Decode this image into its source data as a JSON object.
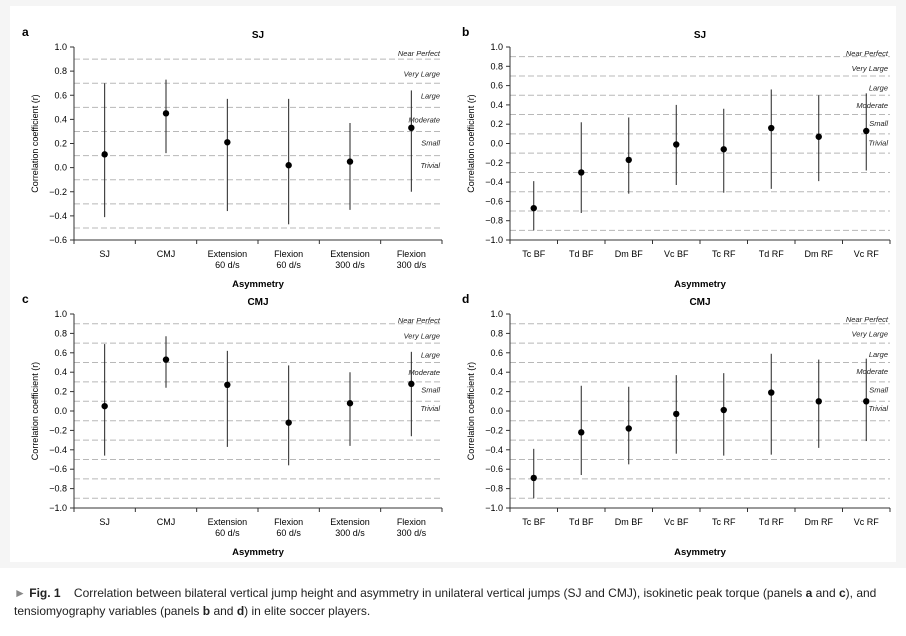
{
  "caption": {
    "marker": "►",
    "label": "Fig. 1",
    "text_before_a": "Correlation between bilateral vertical jump height and asymmetry in unilateral vertical jumps (SJ and CMJ), isokinetic peak torque (panels ",
    "a": "a",
    "and_1": " and ",
    "c": "c",
    "text_mid": "), and tensiomyography variables (panels ",
    "b": "b",
    "and_2": " and ",
    "d": "d",
    "text_end": ") in elite soccer players."
  },
  "chart_data": [
    {
      "panel": "a",
      "type": "scatter",
      "title": "SJ",
      "xlabel": "Asymmetry",
      "ylabel": "Correlation coefficient (r)",
      "ylim": [
        -0.6,
        1.0
      ],
      "yticks": [
        "1.0",
        "0.8",
        "0.6",
        "0.4",
        "0.2",
        "0.0",
        "−0.2",
        "−0.4",
        "−0.6"
      ],
      "ytick_values": [
        1.0,
        0.8,
        0.6,
        0.4,
        0.2,
        0.0,
        -0.2,
        -0.4,
        -0.6
      ],
      "categories": [
        [
          "SJ"
        ],
        [
          "CMJ"
        ],
        [
          "Extension",
          "60 d/s"
        ],
        [
          "Flexion",
          "60 d/s"
        ],
        [
          "Extension",
          "300 d/s"
        ],
        [
          "Flexion",
          "300 d/s"
        ]
      ],
      "r": [
        0.11,
        0.45,
        0.21,
        0.02,
        0.05,
        0.33
      ],
      "ci_lower": [
        -0.41,
        0.12,
        -0.36,
        -0.47,
        -0.35,
        -0.2
      ],
      "ci_upper": [
        0.7,
        0.73,
        0.57,
        0.57,
        0.37,
        0.64
      ],
      "thresholds": [
        0.9,
        0.7,
        0.5,
        0.3,
        0.1,
        -0.1,
        -0.3,
        -0.5
      ],
      "threshold_labels": [
        {
          "label": "Near Perfect",
          "y": 0.95
        },
        {
          "label": "Very Large",
          "y": 0.78
        },
        {
          "label": "Large",
          "y": 0.6
        },
        {
          "label": "Moderate",
          "y": 0.4
        },
        {
          "label": "Small",
          "y": 0.21
        },
        {
          "label": "Trivial",
          "y": 0.02
        }
      ]
    },
    {
      "panel": "b",
      "type": "scatter",
      "title": "SJ",
      "xlabel": "Asymmetry",
      "ylabel": "Correlation coefficient (r)",
      "ylim": [
        -1.0,
        1.0
      ],
      "yticks": [
        "1.0",
        "0.8",
        "0.6",
        "0.4",
        "0.2",
        "0.0",
        "−0.2",
        "−0.4",
        "−0.6",
        "−0.8",
        "−1.0"
      ],
      "ytick_values": [
        1.0,
        0.8,
        0.6,
        0.4,
        0.2,
        0.0,
        -0.2,
        -0.4,
        -0.6,
        -0.8,
        -1.0
      ],
      "categories": [
        [
          "Tc BF"
        ],
        [
          "Td BF"
        ],
        [
          "Dm BF"
        ],
        [
          "Vc BF"
        ],
        [
          "Tc RF"
        ],
        [
          "Td RF"
        ],
        [
          "Dm RF"
        ],
        [
          "Vc RF"
        ]
      ],
      "r": [
        -0.67,
        -0.3,
        -0.17,
        -0.01,
        -0.06,
        0.16,
        0.07,
        0.13
      ],
      "ci_lower": [
        -0.9,
        -0.72,
        -0.52,
        -0.43,
        -0.51,
        -0.47,
        -0.39,
        -0.28
      ],
      "ci_upper": [
        -0.39,
        0.22,
        0.27,
        0.4,
        0.36,
        0.56,
        0.5,
        0.52
      ],
      "thresholds": [
        0.9,
        0.7,
        0.5,
        0.3,
        0.1,
        -0.1,
        -0.3,
        -0.5,
        -0.7,
        -0.9
      ],
      "threshold_labels": [
        {
          "label": "Near Perfect",
          "y": 0.94
        },
        {
          "label": "Very Large",
          "y": 0.78
        },
        {
          "label": "Large",
          "y": 0.58
        },
        {
          "label": "Moderate",
          "y": 0.4
        },
        {
          "label": "Small",
          "y": 0.21
        },
        {
          "label": "Trivial",
          "y": 0.01
        }
      ]
    },
    {
      "panel": "c",
      "type": "scatter",
      "title": "CMJ",
      "xlabel": "Asymmetry",
      "ylabel": "Correlation coefficient (r)",
      "ylim": [
        -1.0,
        1.0
      ],
      "yticks": [
        "1.0",
        "0.8",
        "0.6",
        "0.4",
        "0.2",
        "0.0",
        "−0.2",
        "−0.4",
        "−0.6",
        "−0.8",
        "−1.0"
      ],
      "ytick_values": [
        1.0,
        0.8,
        0.6,
        0.4,
        0.2,
        0.0,
        -0.2,
        -0.4,
        -0.6,
        -0.8,
        -1.0
      ],
      "categories": [
        [
          "SJ"
        ],
        [
          "CMJ"
        ],
        [
          "Extension",
          "60 d/s"
        ],
        [
          "Flexion",
          "60 d/s"
        ],
        [
          "Extension",
          "300 d/s"
        ],
        [
          "Flexion",
          "300 d/s"
        ]
      ],
      "r": [
        0.05,
        0.53,
        0.27,
        -0.12,
        0.08,
        0.28
      ],
      "ci_lower": [
        -0.46,
        0.24,
        -0.37,
        -0.56,
        -0.36,
        -0.26
      ],
      "ci_upper": [
        0.69,
        0.77,
        0.62,
        0.47,
        0.4,
        0.61
      ],
      "thresholds": [
        0.9,
        0.7,
        0.5,
        0.3,
        0.1,
        -0.1,
        -0.3,
        -0.5,
        -0.7,
        -0.9
      ],
      "threshold_labels": [
        {
          "label": "Near Perfect",
          "y": 0.94
        },
        {
          "label": "Very Large",
          "y": 0.78
        },
        {
          "label": "Large",
          "y": 0.58
        },
        {
          "label": "Moderate",
          "y": 0.4
        },
        {
          "label": "Small",
          "y": 0.22
        },
        {
          "label": "Trivial",
          "y": 0.03
        }
      ]
    },
    {
      "panel": "d",
      "type": "scatter",
      "title": "CMJ",
      "xlabel": "Asymmetry",
      "ylabel": "Correlation coefficient (r)",
      "ylim": [
        -1.0,
        1.0
      ],
      "yticks": [
        "1.0",
        "0.8",
        "0.6",
        "0.4",
        "0.2",
        "0.0",
        "−0.2",
        "−0.4",
        "−0.6",
        "−0.8",
        "−1.0"
      ],
      "ytick_values": [
        1.0,
        0.8,
        0.6,
        0.4,
        0.2,
        0.0,
        -0.2,
        -0.4,
        -0.6,
        -0.8,
        -1.0
      ],
      "categories": [
        [
          "Tc BF"
        ],
        [
          "Td BF"
        ],
        [
          "Dm BF"
        ],
        [
          "Vc BF"
        ],
        [
          "Tc RF"
        ],
        [
          "Td RF"
        ],
        [
          "Dm RF"
        ],
        [
          "Vc RF"
        ]
      ],
      "r": [
        -0.69,
        -0.22,
        -0.18,
        -0.03,
        0.01,
        0.19,
        0.1,
        0.1
      ],
      "ci_lower": [
        -0.9,
        -0.66,
        -0.55,
        -0.44,
        -0.46,
        -0.45,
        -0.38,
        -0.31
      ],
      "ci_upper": [
        -0.39,
        0.26,
        0.25,
        0.37,
        0.39,
        0.59,
        0.53,
        0.54
      ],
      "thresholds": [
        0.9,
        0.7,
        0.5,
        0.3,
        0.1,
        -0.1,
        -0.3,
        -0.5,
        -0.7,
        -0.9
      ],
      "threshold_labels": [
        {
          "label": "Near Perfect",
          "y": 0.95
        },
        {
          "label": "Very Large",
          "y": 0.8
        },
        {
          "label": "Large",
          "y": 0.59
        },
        {
          "label": "Moderate",
          "y": 0.41
        },
        {
          "label": "Small",
          "y": 0.22
        },
        {
          "label": "Trivial",
          "y": 0.03
        }
      ]
    }
  ],
  "colors": {
    "threshold_line": "#b8b8b8",
    "axis": "#333333",
    "marker": "#000000",
    "panel_background": "#f5f5f5"
  }
}
